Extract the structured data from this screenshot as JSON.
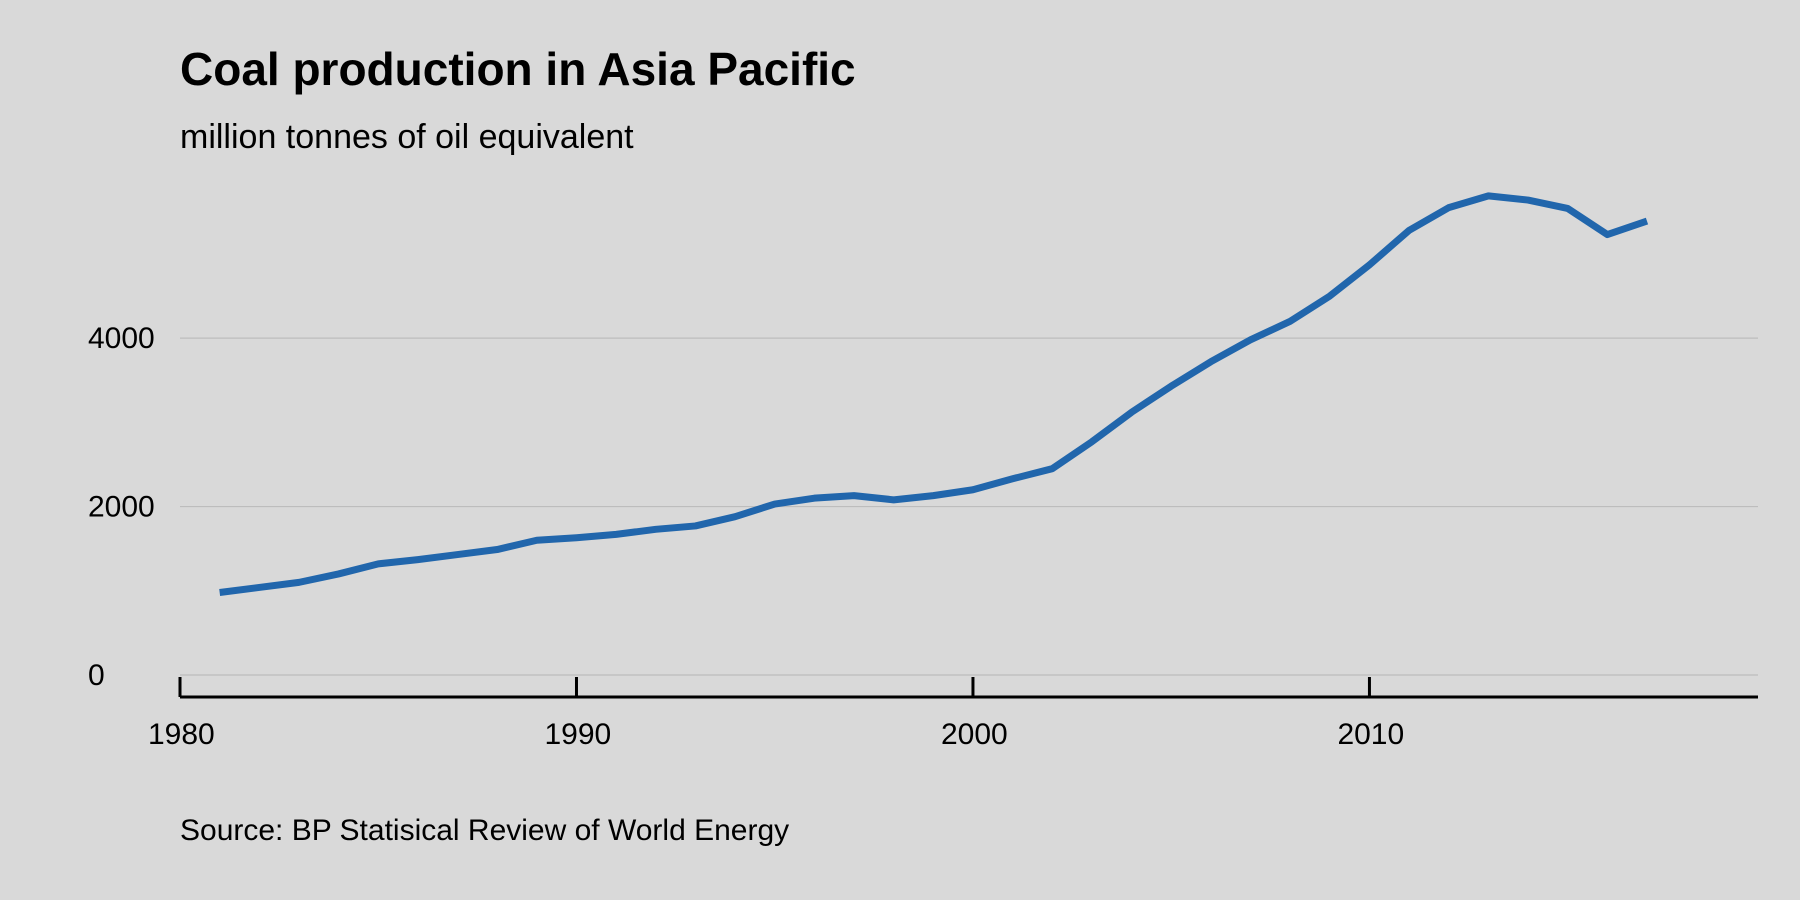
{
  "chart_data": {
    "type": "line",
    "title": "Coal production in Asia Pacific",
    "subtitle": "million tonnes of oil equivalent",
    "source": "Source: BP Statisical Review of World Energy",
    "xlabel": "",
    "ylabel": "",
    "x": [
      1981,
      1982,
      1983,
      1984,
      1985,
      1986,
      1987,
      1988,
      1989,
      1990,
      1991,
      1992,
      1993,
      1994,
      1995,
      1996,
      1997,
      1998,
      1999,
      2000,
      2001,
      2002,
      2003,
      2004,
      2005,
      2006,
      2007,
      2008,
      2009,
      2010,
      2011,
      2012,
      2013,
      2014,
      2015,
      2016,
      2017
    ],
    "series": [
      {
        "name": "",
        "values": [
          980,
          1040,
          1100,
          1200,
          1320,
          1370,
          1430,
          1490,
          1600,
          1630,
          1670,
          1730,
          1770,
          1880,
          2030,
          2100,
          2130,
          2080,
          2130,
          2200,
          2330,
          2450,
          2770,
          3120,
          3430,
          3720,
          3980,
          4200,
          4500,
          4870,
          5280,
          5550,
          5690,
          5640,
          5540,
          5230,
          5390
        ]
      }
    ],
    "xlim": [
      1980,
      2019.8
    ],
    "ylim": [
      0,
      5700
    ],
    "xticks": [
      1980,
      1990,
      2000,
      2010
    ],
    "xtick_labels": [
      "1980",
      "1990",
      "2000",
      "2010"
    ],
    "yticks": [
      0,
      2000,
      4000
    ],
    "ytick_labels": [
      "0",
      "2000",
      "4000"
    ],
    "grid": true,
    "legend": "none",
    "colors": {
      "background": "#d9d9d9",
      "line": "#2166ac",
      "grid": "#bdbdbd",
      "axis": "#000000"
    }
  }
}
